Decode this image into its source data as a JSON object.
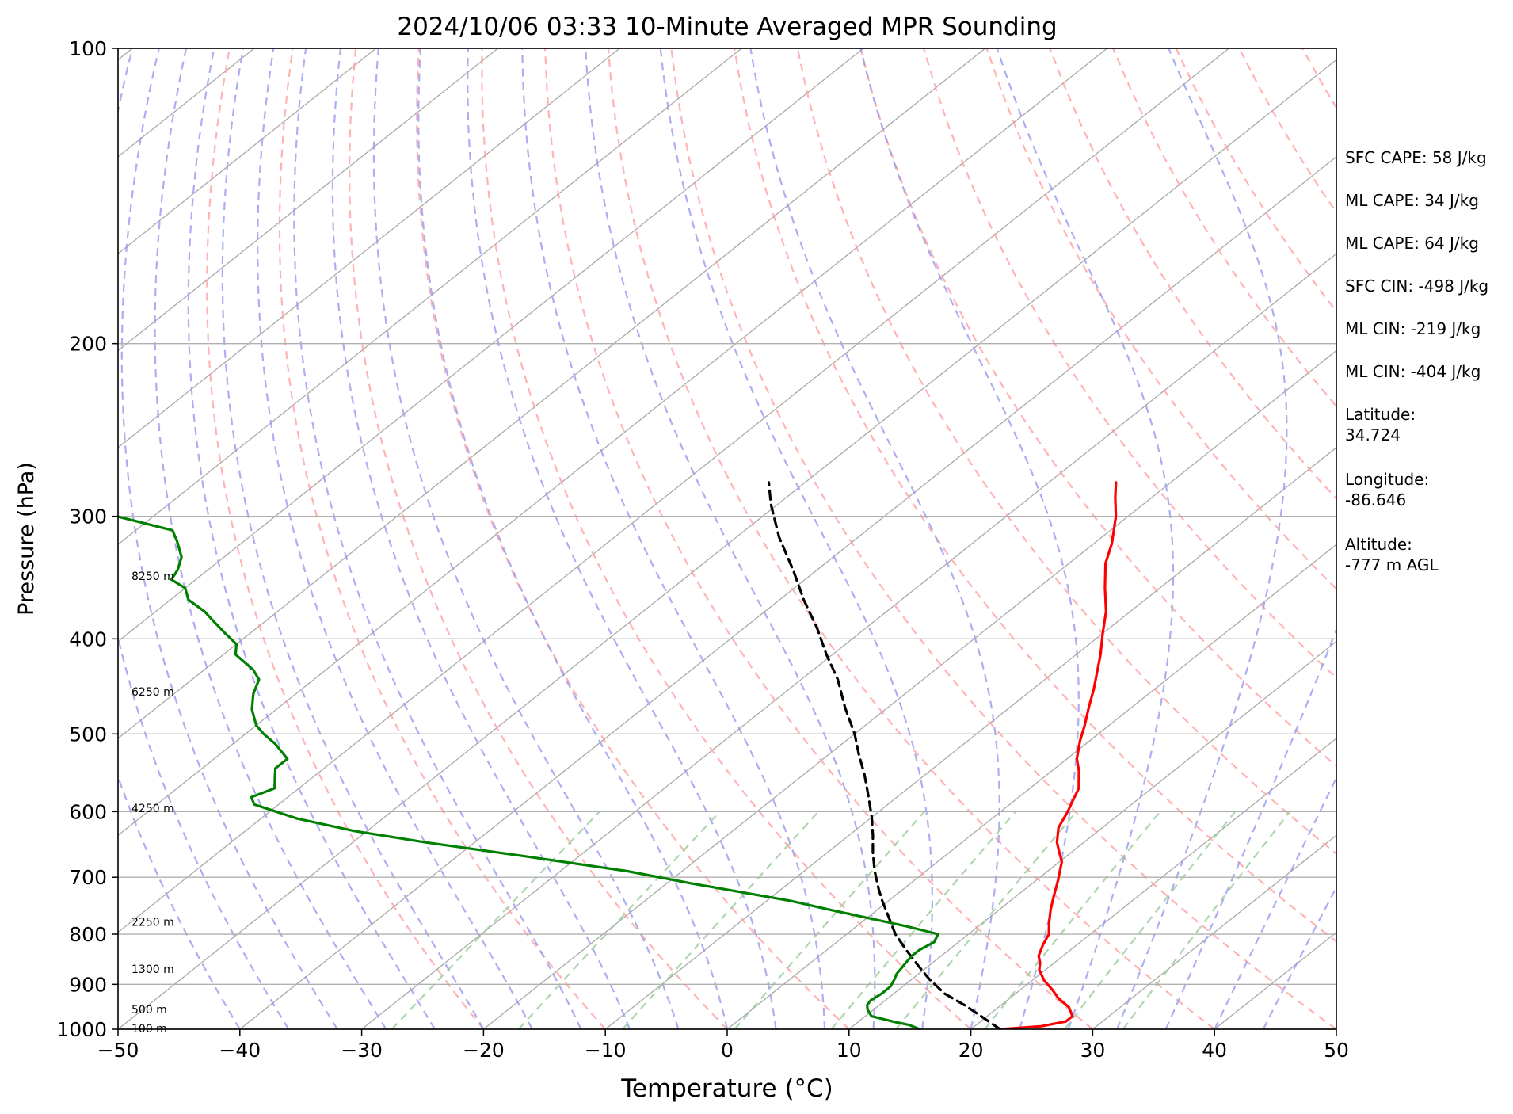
{
  "chart_data": {
    "type": "line",
    "subtype": "skew-T log-p sounding",
    "title": "2024/10/06 03:33 10-Minute Averaged MPR Sounding",
    "xlabel": "Temperature (°C)",
    "ylabel": "Pressure (hPa)",
    "xlim": [
      -50,
      50
    ],
    "ylim": [
      1000,
      100
    ],
    "y_scale": "log",
    "x_ticks": [
      "−50",
      "−40",
      "−30",
      "−20",
      "−10",
      "0",
      "10",
      "20",
      "30",
      "40",
      "50"
    ],
    "y_ticks": [
      "100",
      "200",
      "300",
      "400",
      "500",
      "600",
      "700",
      "800",
      "900",
      "1000"
    ],
    "grid": true,
    "height_labels": [
      {
        "p": 345,
        "label": "8250 m"
      },
      {
        "p": 453,
        "label": "6250 m"
      },
      {
        "p": 595,
        "label": "4250 m"
      },
      {
        "p": 777,
        "label": "2250 m"
      },
      {
        "p": 868,
        "label": "1300 m"
      },
      {
        "p": 955,
        "label": "500 m"
      },
      {
        "p": 998,
        "label": "100 m"
      }
    ],
    "series": [
      {
        "color": "#ff0000",
        "dash": "solid",
        "points": [
          [
            22.4,
            1000
          ],
          [
            25.5,
            993
          ],
          [
            27.0,
            982
          ],
          [
            27.0,
            970
          ],
          [
            25.8,
            950
          ],
          [
            24.0,
            930
          ],
          [
            22.5,
            910
          ],
          [
            21.0,
            892
          ],
          [
            19.5,
            870
          ],
          [
            18.8,
            855
          ],
          [
            18.0,
            842
          ],
          [
            17.2,
            820
          ],
          [
            16.6,
            800
          ],
          [
            15.5,
            780
          ],
          [
            14.2,
            755
          ],
          [
            13.0,
            730
          ],
          [
            11.8,
            705
          ],
          [
            11.0,
            690
          ],
          [
            10.2,
            675
          ],
          [
            9.0,
            660
          ],
          [
            7.8,
            645
          ],
          [
            6.4,
            623
          ],
          [
            5.5,
            600
          ],
          [
            4.8,
            585
          ],
          [
            4.0,
            568
          ],
          [
            2.2,
            545
          ],
          [
            0.8,
            530
          ],
          [
            -0.8,
            508
          ],
          [
            -2.0,
            490
          ],
          [
            -3.5,
            470
          ],
          [
            -5.0,
            450
          ],
          [
            -8.0,
            415
          ],
          [
            -10.0,
            395
          ],
          [
            -12.0,
            375
          ],
          [
            -14.5,
            355
          ],
          [
            -17.0,
            335
          ],
          [
            -18.5,
            320
          ],
          [
            -21.0,
            300
          ],
          [
            -23.0,
            287
          ],
          [
            -24.5,
            277
          ]
        ]
      },
      {
        "color": "#000000",
        "dash": "dashed",
        "points": [
          [
            22.4,
            1000
          ],
          [
            20.0,
            975
          ],
          [
            17.0,
            945
          ],
          [
            14.2,
            920
          ],
          [
            11.5,
            890
          ],
          [
            9.0,
            860
          ],
          [
            6.5,
            830
          ],
          [
            4.0,
            800
          ],
          [
            1.8,
            770
          ],
          [
            -0.5,
            740
          ],
          [
            -2.0,
            720
          ],
          [
            -4.2,
            690
          ],
          [
            -6.3,
            660
          ],
          [
            -8.0,
            635
          ],
          [
            -10.0,
            608
          ],
          [
            -12.5,
            578
          ],
          [
            -15.0,
            550
          ],
          [
            -17.5,
            525
          ],
          [
            -20.0,
            500
          ],
          [
            -23.5,
            470
          ],
          [
            -27.0,
            440
          ],
          [
            -30.5,
            415
          ],
          [
            -34.0,
            390
          ],
          [
            -38.0,
            365
          ],
          [
            -42.0,
            340
          ],
          [
            -46.5,
            315
          ],
          [
            -50.5,
            292
          ],
          [
            -53.0,
            277
          ]
        ]
      },
      {
        "color": "#008000",
        "dash": "solid",
        "points": [
          [
            15.8,
            1000
          ],
          [
            14.5,
            990
          ],
          [
            13.0,
            983
          ],
          [
            10.5,
            970
          ],
          [
            9.5,
            955
          ],
          [
            9.0,
            945
          ],
          [
            8.8,
            935
          ],
          [
            9.0,
            920
          ],
          [
            9.0,
            905
          ],
          [
            8.6,
            890
          ],
          [
            8.2,
            878
          ],
          [
            8.0,
            866
          ],
          [
            7.8,
            855
          ],
          [
            7.6,
            842
          ],
          [
            7.6,
            830
          ],
          [
            8.0,
            815
          ],
          [
            7.5,
            800
          ],
          [
            4.0,
            785
          ],
          [
            -4.0,
            755
          ],
          [
            -8.0,
            740
          ],
          [
            -18.0,
            710
          ],
          [
            -24.5,
            690
          ],
          [
            -35.0,
            665
          ],
          [
            -44.0,
            645
          ],
          [
            -51.0,
            628
          ],
          [
            -57.0,
            610
          ],
          [
            -62.0,
            590
          ],
          [
            -63.0,
            580
          ],
          [
            -62.0,
            568
          ],
          [
            -63.0,
            555
          ],
          [
            -64.0,
            542
          ],
          [
            -64.0,
            530
          ],
          [
            -66.5,
            512
          ],
          [
            -68.5,
            500
          ],
          [
            -70.0,
            490
          ],
          [
            -72.0,
            472
          ],
          [
            -73.5,
            455
          ],
          [
            -74.5,
            440
          ],
          [
            -76.0,
            430
          ],
          [
            -79.0,
            415
          ],
          [
            -80.0,
            405
          ],
          [
            -82.0,
            395
          ],
          [
            -84.0,
            385
          ],
          [
            -86.0,
            375
          ],
          [
            -88.5,
            365
          ],
          [
            -90.0,
            355
          ],
          [
            -92.0,
            348
          ],
          [
            -92.5,
            340
          ],
          [
            -93.5,
            330
          ],
          [
            -95.5,
            318
          ],
          [
            -97.0,
            310
          ],
          [
            -103.0,
            300
          ],
          [
            -115.0,
            293
          ],
          [
            -125.0,
            290
          ]
        ]
      }
    ],
    "background_lines": {
      "isotherms_color": "#a9a9a9",
      "dry_adiabats_color": "#ff9999",
      "moist_adiabats_color": "#9999ee",
      "mixing_ratio_color": "#99cc99"
    }
  },
  "side_info": {
    "lines": [
      {
        "text": "SFC CAPE: 58 J/kg"
      },
      {
        "text": "ML CAPE: 34 J/kg"
      },
      {
        "text": "ML CAPE: 64 J/kg"
      },
      {
        "text": "SFC CIN: -498 J/kg"
      },
      {
        "text": "ML CIN: -219 J/kg"
      },
      {
        "text": "ML CIN: -404 J/kg"
      },
      {
        "text": "Latitude:",
        "text2": "34.724"
      },
      {
        "text": "Longitude:",
        "text2": "-86.646"
      },
      {
        "text": "Altitude:",
        "text2": "-777 m AGL"
      }
    ]
  }
}
